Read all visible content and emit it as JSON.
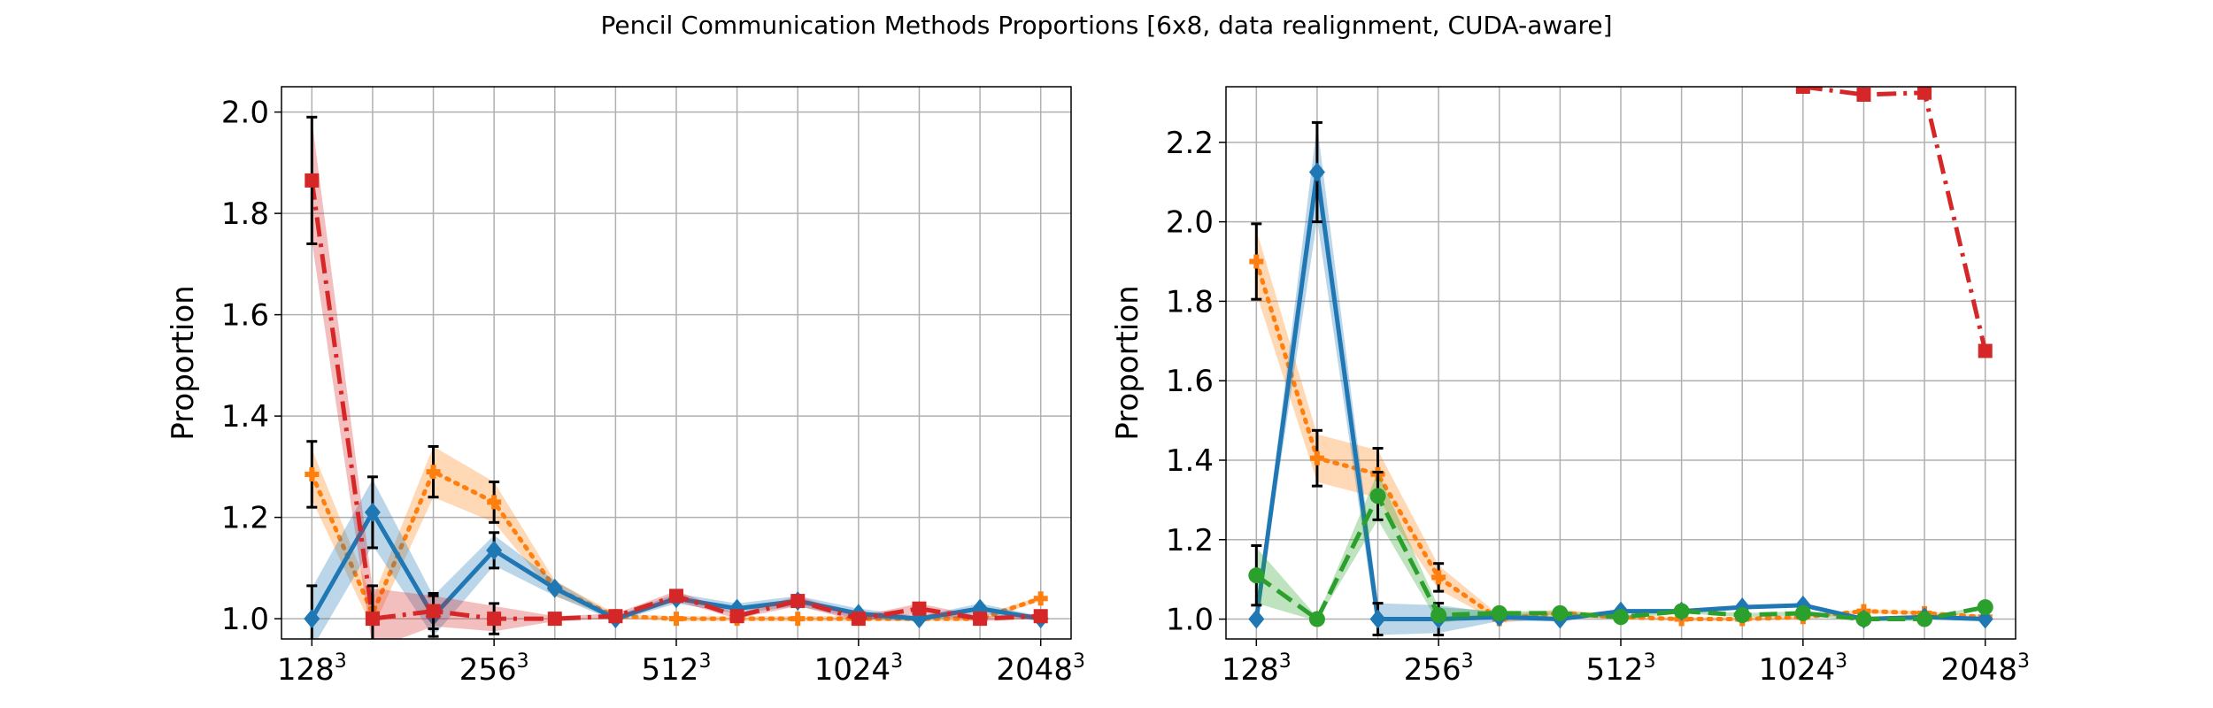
{
  "figure": {
    "suptitle": "Pencil Communication Methods Proportions [6x8, data realignment, CUDA-aware]"
  },
  "colors": {
    "blue": "#1f77b4",
    "orange": "#ff7f0e",
    "green": "#2ca02c",
    "red": "#d62728",
    "grid": "#b0b0b0",
    "errorbar": "#000000"
  },
  "chart_data": [
    {
      "type": "line",
      "panel": "left",
      "ylabel": "Proportion",
      "xlabel": "",
      "ylim": [
        0.96,
        2.05
      ],
      "yticks": [
        1.0,
        1.2,
        1.4,
        1.6,
        1.8,
        2.0
      ],
      "ytick_labels": [
        "1.0",
        "1.2",
        "1.4",
        "1.6",
        "1.8",
        "2.0"
      ],
      "x_index_range": [
        -0.5,
        12.5
      ],
      "xtick_positions": [
        0,
        3,
        6,
        9,
        12
      ],
      "xtick_labels": [
        {
          "base": "128",
          "sup": "3"
        },
        {
          "base": "256",
          "sup": "3"
        },
        {
          "base": "512",
          "sup": "3"
        },
        {
          "base": "1024",
          "sup": "3"
        },
        {
          "base": "2048",
          "sup": "3"
        }
      ],
      "grid": true,
      "series": [
        {
          "color": "orange",
          "linestyle": "dotted",
          "marker": "plus",
          "values": [
            1.285,
            1.01,
            1.29,
            1.23,
            1.06,
            1.005,
            1.0,
            1.0,
            1.0,
            1.0,
            1.0,
            1.0,
            1.04
          ],
          "band": [
            0.05,
            0.03,
            0.05,
            0.04,
            0.015,
            0.005,
            0.005,
            0.005,
            0.005,
            0.005,
            0.005,
            0.005,
            0.005
          ],
          "errorbars": [
            0.065,
            0.0,
            0.05,
            0.04,
            0.0,
            0.0,
            0.0,
            0.0,
            0.0,
            0.0,
            0.0,
            0.0,
            0.0
          ]
        },
        {
          "color": "blue",
          "linestyle": "solid",
          "marker": "diamond",
          "values": [
            1.0,
            1.21,
            1.005,
            1.135,
            1.06,
            1.0,
            1.04,
            1.02,
            1.035,
            1.01,
            1.0,
            1.02,
            1.0
          ],
          "band": [
            0.06,
            0.065,
            0.04,
            0.03,
            0.015,
            0.005,
            0.01,
            0.01,
            0.01,
            0.01,
            0.005,
            0.01,
            0.005
          ],
          "errorbars": [
            0.065,
            0.07,
            0.04,
            0.035,
            0.0,
            0.0,
            0.0,
            0.0,
            0.0,
            0.0,
            0.0,
            0.0,
            0.0
          ]
        },
        {
          "color": "red",
          "linestyle": "dashdot",
          "marker": "square",
          "values": [
            1.865,
            1.0,
            1.015,
            1.0,
            1.0,
            1.005,
            1.045,
            1.005,
            1.035,
            1.0,
            1.02,
            1.0,
            1.005
          ],
          "band": [
            0.12,
            0.06,
            0.03,
            0.025,
            0.005,
            0.005,
            0.01,
            0.005,
            0.01,
            0.005,
            0.01,
            0.005,
            0.005
          ],
          "errorbars": [
            0.125,
            0.065,
            0.035,
            0.03,
            0.0,
            0.0,
            0.0,
            0.0,
            0.0,
            0.0,
            0.0,
            0.0,
            0.0
          ]
        }
      ]
    },
    {
      "type": "line",
      "panel": "right",
      "ylabel": "Proportion",
      "xlabel": "",
      "ylim": [
        0.95,
        2.34
      ],
      "yticks": [
        1.0,
        1.2,
        1.4,
        1.6,
        1.8,
        2.0,
        2.2
      ],
      "ytick_labels": [
        "1.0",
        "1.2",
        "1.4",
        "1.6",
        "1.8",
        "2.0",
        "2.2"
      ],
      "x_index_range": [
        -0.5,
        12.5
      ],
      "xtick_positions": [
        0,
        3,
        6,
        9,
        12
      ],
      "xtick_labels": [
        {
          "base": "128",
          "sup": "3"
        },
        {
          "base": "256",
          "sup": "3"
        },
        {
          "base": "512",
          "sup": "3"
        },
        {
          "base": "1024",
          "sup": "3"
        },
        {
          "base": "2048",
          "sup": "3"
        }
      ],
      "grid": true,
      "series": [
        {
          "color": "red",
          "linestyle": "dashdot",
          "marker": "square",
          "values": [
            null,
            null,
            null,
            null,
            null,
            null,
            null,
            null,
            null,
            2.34,
            2.32,
            2.325,
            1.675
          ],
          "band": [
            0,
            0,
            0,
            0,
            0,
            0,
            0,
            0,
            0,
            0,
            0,
            0,
            0
          ],
          "errorbars": [
            0,
            0,
            0,
            0,
            0,
            0,
            0,
            0,
            0,
            0,
            0,
            0,
            0
          ]
        },
        {
          "color": "orange",
          "linestyle": "dotted",
          "marker": "plus",
          "values": [
            1.9,
            1.405,
            1.365,
            1.105,
            1.0,
            1.015,
            1.005,
            1.0,
            1.0,
            1.005,
            1.02,
            1.015,
            1.005
          ],
          "band": [
            0.08,
            0.06,
            0.06,
            0.03,
            0.01,
            0.01,
            0.005,
            0.005,
            0.005,
            0.005,
            0.005,
            0.005,
            0.005
          ],
          "errorbars": [
            0.095,
            0.07,
            0.065,
            0.035,
            0.0,
            0.0,
            0.0,
            0.0,
            0.0,
            0.0,
            0.0,
            0.0,
            0.0
          ]
        },
        {
          "color": "blue",
          "linestyle": "solid",
          "marker": "diamond",
          "values": [
            1.0,
            2.125,
            1.0,
            1.0,
            1.005,
            1.0,
            1.02,
            1.02,
            1.03,
            1.035,
            1.0,
            1.005,
            1.0
          ],
          "band": [
            0.01,
            0.12,
            0.04,
            0.035,
            0.01,
            0.005,
            0.005,
            0.005,
            0.005,
            0.005,
            0.005,
            0.005,
            0.005
          ],
          "errorbars": [
            0.0,
            0.125,
            0.04,
            0.04,
            0.0,
            0.0,
            0.0,
            0.0,
            0.0,
            0.0,
            0.0,
            0.0,
            0.0
          ]
        },
        {
          "color": "green",
          "linestyle": "dashed",
          "marker": "circle",
          "values": [
            1.11,
            1.0,
            1.31,
            1.01,
            1.015,
            1.015,
            1.005,
            1.02,
            1.01,
            1.015,
            1.0,
            1.0,
            1.03
          ],
          "band": [
            0.07,
            0.005,
            0.06,
            0.02,
            0.005,
            0.005,
            0.005,
            0.005,
            0.005,
            0.005,
            0.005,
            0.005,
            0.005
          ],
          "errorbars": [
            0.075,
            0.0,
            0.06,
            0.0,
            0.0,
            0.0,
            0.0,
            0.0,
            0.0,
            0.0,
            0.0,
            0.0,
            0.0
          ]
        }
      ]
    }
  ]
}
